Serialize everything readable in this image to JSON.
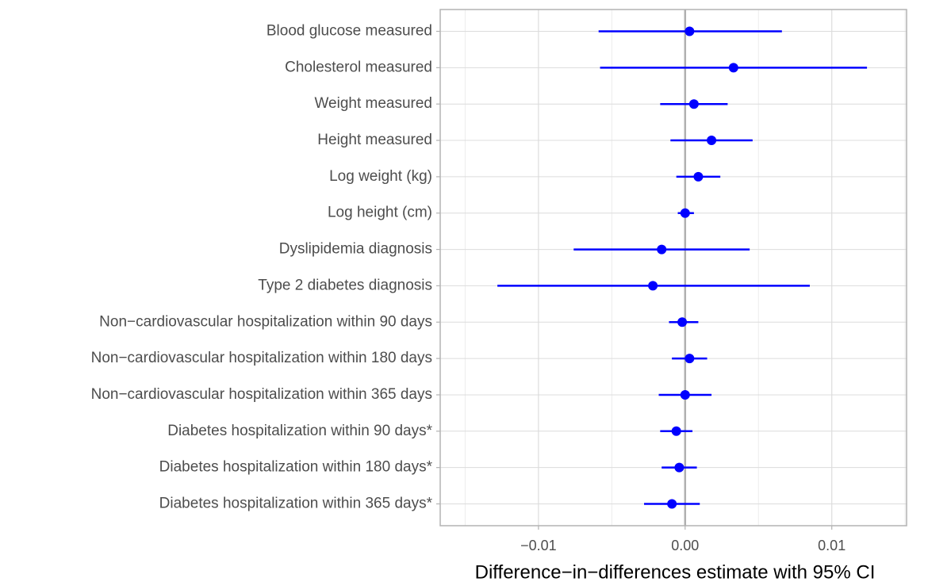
{
  "chart_data": {
    "type": "forest",
    "x_label": "Difference−in−differences estimate with 95% CI",
    "categories": [
      "Blood glucose measured",
      "Cholesterol measured",
      "Weight measured",
      "Height measured",
      "Log weight (kg)",
      "Log height (cm)",
      "Dyslipidemia diagnosis",
      "Type 2 diabetes diagnosis",
      "Non−cardiovascular hospitalization within 90 days",
      "Non−cardiovascular hospitalization within 180 days",
      "Non−cardiovascular hospitalization within 365 days",
      "Diabetes hospitalization within 90 days*",
      "Diabetes hospitalization within 180 days*",
      "Diabetes hospitalization within 365 days*"
    ],
    "values": [
      0.0003,
      0.0033,
      0.0006,
      0.0018,
      0.0009,
      0.0,
      -0.0016,
      -0.0022,
      -0.0002,
      0.0003,
      0.0,
      -0.0006,
      -0.0004,
      -0.0009
    ],
    "lower": [
      -0.0059,
      -0.0058,
      -0.0017,
      -0.001,
      -0.0006,
      -0.0005,
      -0.0076,
      -0.0128,
      -0.0011,
      -0.0009,
      -0.0018,
      -0.0017,
      -0.0016,
      -0.0028
    ],
    "upper": [
      0.0066,
      0.0124,
      0.0029,
      0.0046,
      0.0024,
      0.0006,
      0.0044,
      0.0085,
      0.0009,
      0.0015,
      0.0018,
      0.0005,
      0.0008,
      0.001
    ],
    "color": "#0000ff",
    "xlim": [
      -0.0167,
      0.0151
    ],
    "xticks": [
      {
        "value": -0.01,
        "label": "−0.01"
      },
      {
        "value": 0,
        "label": "0.00"
      },
      0.01
    ],
    "xminor": [
      -0.015,
      -0.005,
      0.005,
      0.015
    ],
    "reference_line": 0,
    "grid": true
  }
}
